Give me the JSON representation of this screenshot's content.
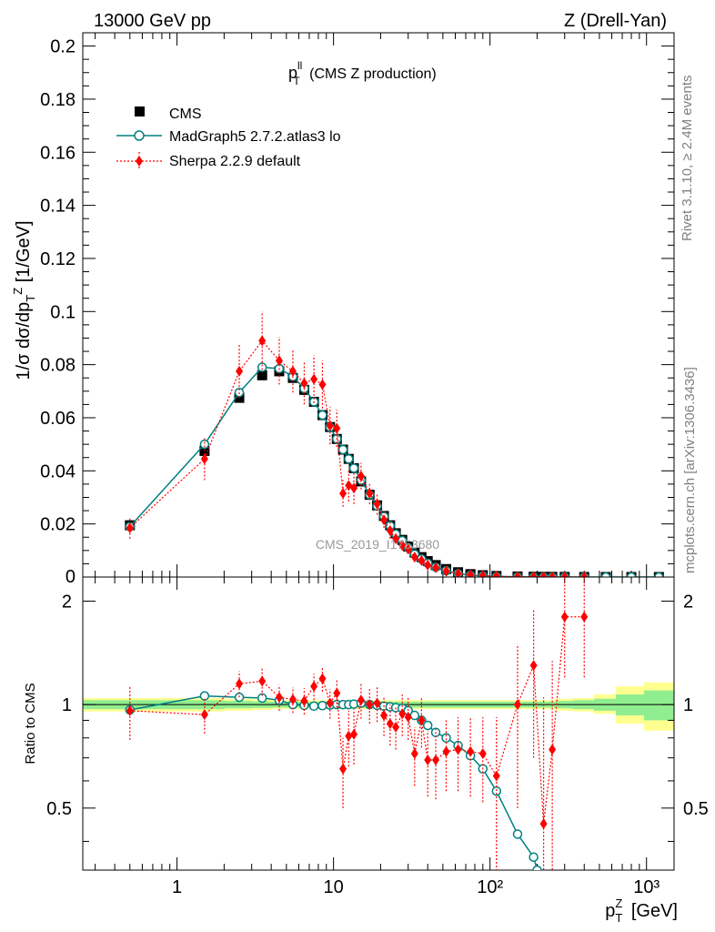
{
  "header": {
    "left": "13000 GeV pp",
    "right": "Z (Drell-Yan)"
  },
  "side_labels": {
    "rivet": "Rivet 3.1.10, ≥ 2.4M events",
    "mcplots": "mcplots.cern.ch [arXiv:1306.3436]"
  },
  "watermark": "CMS_2019_I1753680",
  "title": {
    "main": "p",
    "sup": "ll",
    "sub": "T",
    "rest": " (CMS Z production)"
  },
  "colors": {
    "cms": "#000000",
    "madgraph": "#008080",
    "sherpa": "#ff0000",
    "band_inner": "#90ee90",
    "band_outer": "#ffff90"
  },
  "chart_data": [
    {
      "type": "scatter",
      "panel": "main",
      "title": "pT^ll (CMS Z production)",
      "ylabel": "1/σ dσ/dp_T^Z [1/GeV]",
      "xscale": "log",
      "xlim": [
        0.25,
        1500
      ],
      "ylim": [
        0,
        0.205
      ],
      "yticks": [
        0.02,
        0.04,
        0.06,
        0.08,
        0.1,
        0.12,
        0.14,
        0.16,
        0.18,
        0.2
      ],
      "ytick_labels": [
        "0.02",
        "0.04",
        "0.06",
        "0.08",
        "0.1",
        "0.12",
        "0.14",
        "0.16",
        "0.18",
        "0.2"
      ],
      "ytick_zero_label": "0",
      "legend_position": "top-left",
      "series": [
        {
          "name": "CMS",
          "style": "square",
          "x": [
            0.5,
            1.5,
            2.5,
            3.5,
            4.5,
            5.5,
            6.5,
            7.5,
            8.5,
            9.5,
            10.5,
            11.5,
            12.5,
            13.5,
            15,
            17,
            19,
            21,
            23,
            25,
            27.5,
            30,
            33,
            36.5,
            40,
            45,
            52.5,
            62.5,
            75,
            90,
            110,
            150,
            190,
            220,
            250,
            300,
            400,
            550,
            800,
            1200
          ],
          "y": [
            0.0195,
            0.0475,
            0.0675,
            0.076,
            0.0775,
            0.075,
            0.0705,
            0.066,
            0.061,
            0.0565,
            0.052,
            0.048,
            0.0445,
            0.041,
            0.036,
            0.031,
            0.027,
            0.023,
            0.0195,
            0.0165,
            0.014,
            0.0115,
            0.0092,
            0.0075,
            0.006,
            0.0045,
            0.003,
            0.0018,
            0.0011,
            0.0007,
            0.0004,
            0.00022,
            0.00013,
            9e-05,
            7e-05,
            5e-05,
            2e-05,
            1e-05,
            5e-06,
            2e-06
          ]
        },
        {
          "name": "MadGraph5 2.7.2.atlas3 lo",
          "style": "line-circle",
          "x": [
            0.5,
            1.5,
            2.5,
            3.5,
            4.5,
            5.5,
            6.5,
            7.5,
            8.5,
            9.5,
            10.5,
            11.5,
            12.5,
            13.5,
            15,
            17,
            19,
            21,
            23,
            25,
            27.5,
            30,
            33,
            36.5,
            40,
            45,
            52.5,
            62.5,
            75,
            90,
            110,
            150,
            190,
            220,
            250,
            300,
            400,
            550,
            800,
            1200
          ],
          "y": [
            0.019,
            0.05,
            0.0695,
            0.079,
            0.0785,
            0.0755,
            0.071,
            0.066,
            0.061,
            0.0565,
            0.052,
            0.048,
            0.0445,
            0.041,
            0.0365,
            0.031,
            0.0268,
            0.0228,
            0.0193,
            0.0162,
            0.0137,
            0.011,
            0.0086,
            0.0068,
            0.0052,
            0.0037,
            0.0024,
            0.0013,
            0.0007,
            0.00045,
            0.0002,
            0.0001,
            5e-05,
            3e-05,
            2e-05,
            1e-05,
            5e-06,
            2e-06,
            1e-06,
            5e-07
          ]
        },
        {
          "name": "Sherpa 2.2.9 default",
          "style": "dotted-diamond",
          "x": [
            0.5,
            1.5,
            2.5,
            3.5,
            4.5,
            5.5,
            6.5,
            7.5,
            8.5,
            9.5,
            10.5,
            11.5,
            12.5,
            13.5,
            15,
            17,
            19,
            21,
            23,
            25,
            27.5,
            30,
            33,
            36.5,
            40,
            45,
            52.5,
            62.5,
            75,
            90,
            110,
            150,
            190,
            220,
            250,
            300,
            400
          ],
          "y": [
            0.0185,
            0.0445,
            0.0775,
            0.089,
            0.0815,
            0.0775,
            0.073,
            0.0745,
            0.0725,
            0.057,
            0.056,
            0.0315,
            0.0345,
            0.0335,
            0.038,
            0.0315,
            0.0275,
            0.0215,
            0.0175,
            0.0145,
            0.012,
            0.0105,
            0.0075,
            0.0062,
            0.0045,
            0.0035,
            0.0022,
            0.0013,
            0.0008,
            0.0005,
            0.0003,
            0.00014,
            0.00012,
            7e-05,
            4e-05,
            5e-05,
            3e-05
          ],
          "yerr": [
            0.004,
            0.008,
            0.01,
            0.011,
            0.009,
            0.008,
            0.008,
            0.009,
            0.009,
            0.007,
            0.007,
            0.005,
            0.006,
            0.006,
            0.005,
            0.004,
            0.004,
            0.003,
            0.003,
            0.002,
            0.002,
            0.0015,
            0.0012,
            0.001,
            0.0008,
            0.0006,
            0.0004,
            0.0003,
            0.0002,
            0.00012,
            8e-05,
            6e-05,
            5e-05,
            4e-05,
            3e-05,
            3e-05,
            2e-05
          ]
        }
      ]
    },
    {
      "type": "line",
      "panel": "ratio",
      "ylabel": "Ratio to CMS",
      "xlabel": "p_T^Z [GeV]",
      "xscale": "log",
      "xlim": [
        0.25,
        1500
      ],
      "ylim": [
        0.33,
        2.35
      ],
      "yticks": [
        0.5,
        1,
        2
      ],
      "ytick_labels": [
        "0.5",
        "1",
        "2"
      ],
      "xticks": [
        1,
        10,
        100,
        1000
      ],
      "xtick_labels": [
        "1",
        "10",
        "10²",
        "10³"
      ],
      "reference_line": 1,
      "bands": [
        {
          "name": "inner",
          "edges": [
            0.25,
            1,
            2,
            3,
            4,
            5,
            6,
            7,
            8,
            9,
            10,
            11,
            12,
            13,
            14,
            16,
            18,
            20,
            22,
            24,
            26,
            29,
            31,
            35,
            38,
            42,
            48,
            57,
            68,
            82,
            98,
            122,
            178,
            202,
            238,
            262,
            338,
            462,
            638,
            962,
            1500
          ],
          "lo": [
            0.97,
            0.97,
            0.975,
            0.978,
            0.98,
            0.98,
            0.98,
            0.98,
            0.98,
            0.98,
            0.98,
            0.98,
            0.98,
            0.98,
            0.98,
            0.98,
            0.98,
            0.98,
            0.98,
            0.98,
            0.98,
            0.98,
            0.98,
            0.98,
            0.98,
            0.98,
            0.98,
            0.98,
            0.98,
            0.98,
            0.98,
            0.98,
            0.98,
            0.98,
            0.98,
            0.975,
            0.97,
            0.96,
            0.93,
            0.9
          ],
          "hi": [
            1.03,
            1.03,
            1.025,
            1.022,
            1.02,
            1.02,
            1.02,
            1.02,
            1.02,
            1.02,
            1.02,
            1.02,
            1.02,
            1.02,
            1.02,
            1.02,
            1.02,
            1.02,
            1.02,
            1.02,
            1.02,
            1.02,
            1.02,
            1.02,
            1.02,
            1.02,
            1.02,
            1.02,
            1.02,
            1.02,
            1.02,
            1.02,
            1.02,
            1.02,
            1.02,
            1.025,
            1.03,
            1.04,
            1.07,
            1.1
          ]
        },
        {
          "name": "outer",
          "edges": [
            0.25,
            1,
            2,
            3,
            4,
            5,
            6,
            7,
            8,
            9,
            10,
            11,
            12,
            13,
            14,
            16,
            18,
            20,
            22,
            24,
            26,
            29,
            31,
            35,
            38,
            42,
            48,
            57,
            68,
            82,
            98,
            122,
            178,
            202,
            238,
            262,
            338,
            462,
            638,
            962,
            1500
          ],
          "lo": [
            0.955,
            0.955,
            0.96,
            0.965,
            0.97,
            0.97,
            0.97,
            0.97,
            0.97,
            0.97,
            0.97,
            0.97,
            0.97,
            0.97,
            0.97,
            0.97,
            0.97,
            0.97,
            0.97,
            0.97,
            0.97,
            0.97,
            0.97,
            0.97,
            0.97,
            0.97,
            0.97,
            0.97,
            0.97,
            0.97,
            0.97,
            0.97,
            0.97,
            0.97,
            0.97,
            0.96,
            0.955,
            0.94,
            0.88,
            0.84
          ],
          "hi": [
            1.045,
            1.045,
            1.04,
            1.035,
            1.03,
            1.03,
            1.03,
            1.03,
            1.03,
            1.03,
            1.03,
            1.03,
            1.03,
            1.03,
            1.03,
            1.03,
            1.03,
            1.03,
            1.03,
            1.03,
            1.03,
            1.03,
            1.03,
            1.03,
            1.03,
            1.03,
            1.03,
            1.03,
            1.03,
            1.03,
            1.03,
            1.03,
            1.03,
            1.03,
            1.03,
            1.04,
            1.045,
            1.07,
            1.13,
            1.16
          ]
        }
      ],
      "series": [
        {
          "name": "MadGraph5 2.7.2.atlas3 lo",
          "style": "line-circle",
          "x": [
            0.5,
            1.5,
            2.5,
            3.5,
            4.5,
            5.5,
            6.5,
            7.5,
            8.5,
            9.5,
            10.5,
            11.5,
            12.5,
            13.5,
            15,
            17,
            19,
            21,
            23,
            25,
            27.5,
            30,
            33,
            36.5,
            40,
            45,
            52.5,
            62.5,
            75,
            90,
            110,
            150,
            190,
            200
          ],
          "y": [
            0.965,
            1.06,
            1.05,
            1.045,
            1.03,
            1.0,
            0.995,
            0.99,
            0.993,
            0.997,
            1.0,
            1.0,
            1.0,
            1.003,
            1.01,
            1.0,
            0.995,
            0.99,
            0.985,
            0.98,
            0.975,
            0.96,
            0.93,
            0.9,
            0.87,
            0.83,
            0.8,
            0.76,
            0.71,
            0.65,
            0.56,
            0.42,
            0.36,
            0.33
          ]
        },
        {
          "name": "Sherpa 2.2.9 default",
          "style": "dotted-diamond",
          "x": [
            0.5,
            1.5,
            2.5,
            3.5,
            4.5,
            5.5,
            6.5,
            7.5,
            8.5,
            9.5,
            10.5,
            11.5,
            12.5,
            13.5,
            15,
            17,
            19,
            21,
            23,
            25,
            27.5,
            30,
            33,
            36.5,
            40,
            45,
            52.5,
            62.5,
            75,
            90,
            110,
            150,
            190,
            220,
            250,
            300,
            400
          ],
          "y": [
            0.96,
            0.935,
            1.15,
            1.17,
            1.05,
            1.035,
            1.025,
            1.13,
            1.19,
            1.01,
            1.08,
            0.65,
            0.81,
            0.82,
            1.03,
            1.0,
            1.01,
            0.93,
            0.88,
            0.86,
            0.94,
            0.92,
            0.72,
            0.9,
            0.69,
            0.69,
            0.73,
            0.74,
            0.73,
            0.72,
            0.62,
            1.0,
            1.3,
            0.45,
            0.74,
            1.8,
            1.8
          ],
          "yerr": [
            0.17,
            0.11,
            0.1,
            0.11,
            0.09,
            0.09,
            0.09,
            0.1,
            0.1,
            0.1,
            0.1,
            0.15,
            0.15,
            0.15,
            0.12,
            0.12,
            0.12,
            0.12,
            0.12,
            0.12,
            0.13,
            0.13,
            0.14,
            0.15,
            0.15,
            0.16,
            0.17,
            0.18,
            0.19,
            0.2,
            0.3,
            0.5,
            0.6,
            0.6,
            0.6,
            0.6,
            0.6
          ]
        }
      ]
    }
  ]
}
